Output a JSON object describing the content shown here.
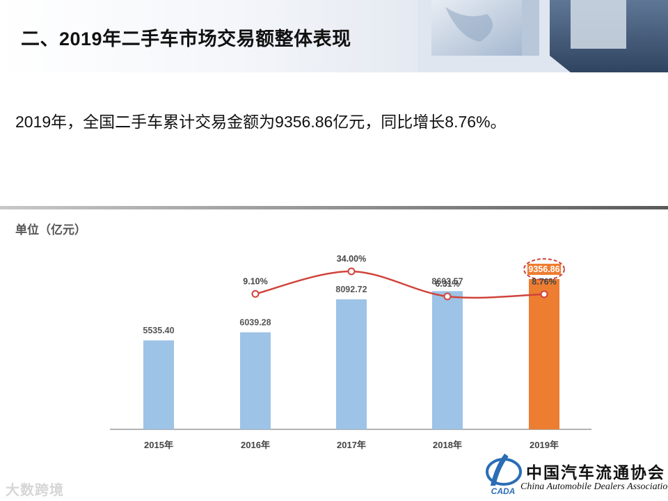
{
  "header": {
    "title": "二、2019年二手车市场交易额整体表现"
  },
  "summary": "2019年，全国二手车累计交易金额为9356.86亿元，同比增长8.76%。",
  "unit_label": "单位（亿元）",
  "chart_data": {
    "type": "bar",
    "categories": [
      "2015年",
      "2016年",
      "2017年",
      "2018年",
      "2019年"
    ],
    "series": [
      {
        "type": "bar",
        "values": [
          5535.4,
          6039.28,
          8092.72,
          8603.57,
          9356.86
        ],
        "value_labels": [
          "5535.40",
          "6039.28",
          "8092.72",
          "8603.57",
          "9356.86"
        ]
      },
      {
        "type": "line",
        "values": [
          null,
          9.1,
          34.0,
          6.31,
          8.76
        ],
        "value_labels": [
          "",
          "9.10%",
          "34.00%",
          "6.31%",
          "8.76%"
        ]
      }
    ],
    "ylim": [
      0,
      12000
    ],
    "highlight_index": 4,
    "colors": {
      "bar": "#9dc3e6",
      "highlight_bar": "#ed7d31",
      "line": "#d0433b",
      "axis": "#999999"
    }
  },
  "logo": {
    "cn": "中国汽车流通协会",
    "en": "China Automobile Dealers Association",
    "mark": "CADA"
  },
  "watermark": "大数跨境"
}
